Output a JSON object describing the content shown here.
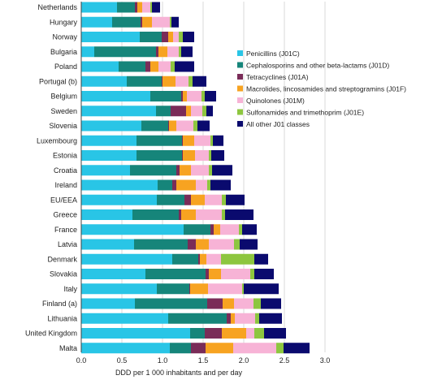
{
  "chart_data": {
    "type": "bar",
    "orientation": "horizontal",
    "stacked": true,
    "xlabel": "DDD per 1 000 inhabitants and per day",
    "xlim": [
      0,
      3.0
    ],
    "xticks": [
      "0.0",
      "0.5",
      "1.0",
      "1.5",
      "2.0",
      "2.5",
      "3.0"
    ],
    "grid": "vertical",
    "legend_position": "right",
    "categories": [
      "Netherlands",
      "Hungary",
      "Norway",
      "Bulgaria",
      "Poland",
      "Portugal (b)",
      "Belgium",
      "Sweden",
      "Slovenia",
      "Luxembourg",
      "Estonia",
      "Croatia",
      "Ireland",
      "EU/EEA",
      "Greece",
      "France",
      "Latvia",
      "Denmark",
      "Slovakia",
      "Italy",
      "Finland (a)",
      "Lithuania",
      "United Kingdom",
      "Malta"
    ],
    "series": [
      {
        "name": "Penicillins (J01C)",
        "color": "#29c5e6",
        "values": [
          0.44,
          0.38,
          0.72,
          0.16,
          0.46,
          0.56,
          0.85,
          0.92,
          0.74,
          0.68,
          0.68,
          0.6,
          0.94,
          0.93,
          0.63,
          1.26,
          0.65,
          1.12,
          0.79,
          0.93,
          0.66,
          1.07,
          1.34,
          1.09
        ]
      },
      {
        "name": "Cephalosporins and other beta-lactams (J01D)",
        "color": "#16857a",
        "values": [
          0.22,
          0.35,
          0.27,
          0.76,
          0.33,
          0.43,
          0.38,
          0.18,
          0.33,
          0.56,
          0.56,
          0.57,
          0.18,
          0.34,
          0.57,
          0.33,
          0.66,
          0.32,
          0.74,
          0.4,
          0.89,
          0.72,
          0.18,
          0.26
        ]
      },
      {
        "name": "Tetracyclines (J01A)",
        "color": "#7a2c58",
        "values": [
          0.03,
          0.02,
          0.08,
          0.03,
          0.06,
          0.01,
          0.02,
          0.19,
          0.01,
          0.01,
          0.01,
          0.04,
          0.05,
          0.08,
          0.03,
          0.04,
          0.1,
          0.02,
          0.04,
          0.01,
          0.19,
          0.05,
          0.21,
          0.18
        ]
      },
      {
        "name": "Macrolides, lincosamides and streptogramins (J01F)",
        "color": "#f7a321",
        "values": [
          0.06,
          0.12,
          0.06,
          0.11,
          0.1,
          0.16,
          0.05,
          0.06,
          0.09,
          0.14,
          0.15,
          0.14,
          0.24,
          0.17,
          0.18,
          0.08,
          0.16,
          0.08,
          0.15,
          0.22,
          0.14,
          0.05,
          0.3,
          0.34
        ]
      },
      {
        "name": "Quinolones (J01M)",
        "color": "#f7b3d6",
        "values": [
          0.1,
          0.22,
          0.07,
          0.14,
          0.15,
          0.16,
          0.18,
          0.14,
          0.21,
          0.2,
          0.17,
          0.22,
          0.14,
          0.21,
          0.32,
          0.23,
          0.31,
          0.18,
          0.36,
          0.42,
          0.24,
          0.25,
          0.1,
          0.53
        ]
      },
      {
        "name": "Sulfonamides and trimethoprim (J01E)",
        "color": "#8dc63f",
        "values": [
          0.02,
          0.02,
          0.05,
          0.03,
          0.05,
          0.05,
          0.04,
          0.05,
          0.05,
          0.03,
          0.03,
          0.04,
          0.04,
          0.05,
          0.04,
          0.04,
          0.07,
          0.41,
          0.05,
          0.02,
          0.09,
          0.05,
          0.12,
          0.09
        ]
      },
      {
        "name": "All other J01 classes",
        "color": "#0a0a6e",
        "values": [
          0.1,
          0.09,
          0.14,
          0.14,
          0.24,
          0.17,
          0.14,
          0.08,
          0.15,
          0.13,
          0.16,
          0.25,
          0.25,
          0.23,
          0.35,
          0.18,
          0.22,
          0.17,
          0.24,
          0.43,
          0.25,
          0.28,
          0.27,
          0.32
        ]
      }
    ]
  }
}
